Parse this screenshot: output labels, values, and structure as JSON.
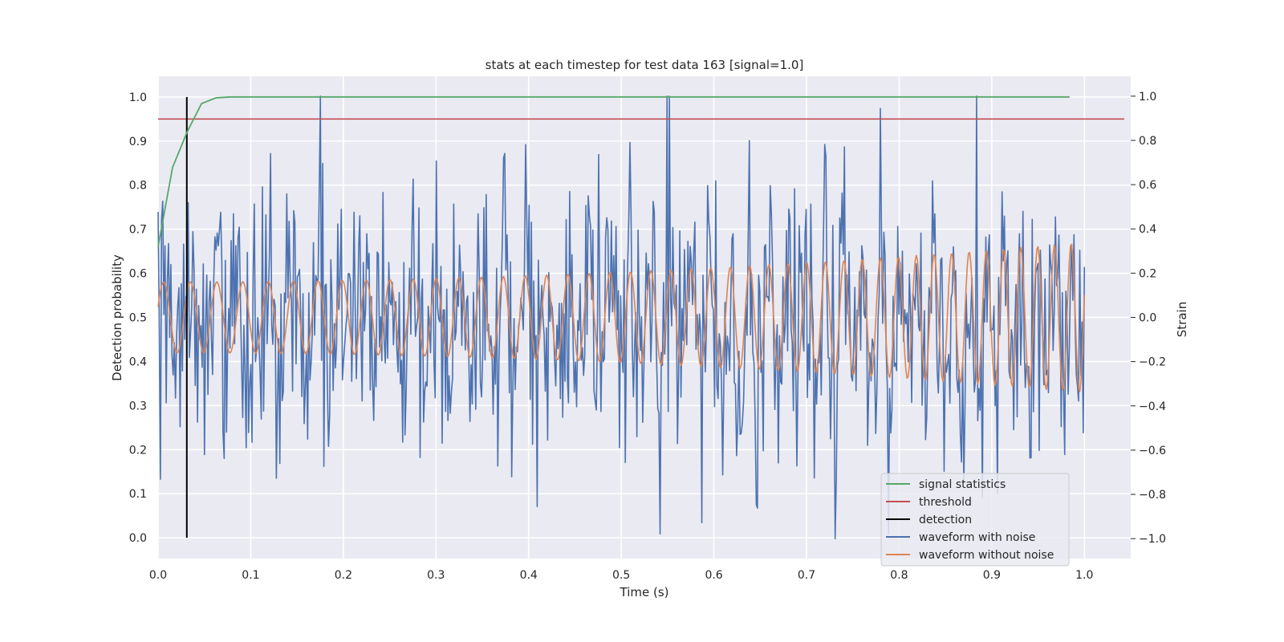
{
  "chart_data": {
    "type": "line",
    "title": "stats at each timestep for test data 163 [signal=1.0]",
    "xlabel": "Time (s)",
    "ylabel": "Detection probability",
    "y2label": "Strain",
    "xlim": [
      0.0,
      1.05
    ],
    "ylim": [
      -0.047,
      1.047
    ],
    "y2lim": [
      -1.09,
      1.09
    ],
    "x_ticks": [
      "0.0",
      "0.1",
      "0.2",
      "0.3",
      "0.4",
      "0.5",
      "0.6",
      "0.7",
      "0.8",
      "0.9",
      "1.0"
    ],
    "y_ticks": [
      "0.0",
      "0.1",
      "0.2",
      "0.3",
      "0.4",
      "0.5",
      "0.6",
      "0.7",
      "0.8",
      "0.9",
      "1.0"
    ],
    "y2_ticks": [
      "−1.0",
      "−0.8",
      "−0.6",
      "−0.4",
      "−0.2",
      "0.0",
      "0.2",
      "0.4",
      "0.6",
      "0.8",
      "1.0"
    ],
    "grid": true,
    "background": "#eaeaf2",
    "legend_position": "lower right",
    "signal_statistics": {
      "name": "signal statistics",
      "color": "#55a868",
      "axis": "left",
      "x": [
        0.0,
        0.0156,
        0.0312,
        0.0469,
        0.0625,
        0.0781,
        0.0938,
        0.15,
        0.3,
        0.5,
        0.7,
        0.9,
        0.984
      ],
      "y": [
        0.66,
        0.84,
        0.92,
        0.985,
        0.998,
        1.0,
        1.0,
        1.0,
        1.0,
        1.0,
        1.0,
        1.0,
        1.0
      ]
    },
    "threshold": {
      "name": "threshold",
      "color": "#c44e52",
      "axis": "left",
      "y": 0.95,
      "x_range": [
        0.0,
        1.043
      ]
    },
    "detection": {
      "name": "detection",
      "color": "#000000",
      "axis": "left",
      "x": 0.031,
      "y_range": [
        0.0,
        1.0
      ]
    },
    "waveform_with_noise": {
      "name": "waveform with noise",
      "color": "#4c72b0",
      "axis": "right",
      "x_range": [
        0.0,
        1.0
      ],
      "n_points": 800,
      "std": 0.3,
      "min": -1.0,
      "max": 1.0
    },
    "waveform_without_noise": {
      "name": "waveform without noise",
      "color": "#dd8452",
      "axis": "right",
      "x_range": [
        0.0,
        1.0
      ],
      "freq_start": 34,
      "freq_end": 56,
      "amplitude_start": 0.16,
      "amplitude_end": 0.34
    },
    "legend": [
      "signal statistics",
      "threshold",
      "detection",
      "waveform with noise",
      "waveform without noise"
    ]
  }
}
